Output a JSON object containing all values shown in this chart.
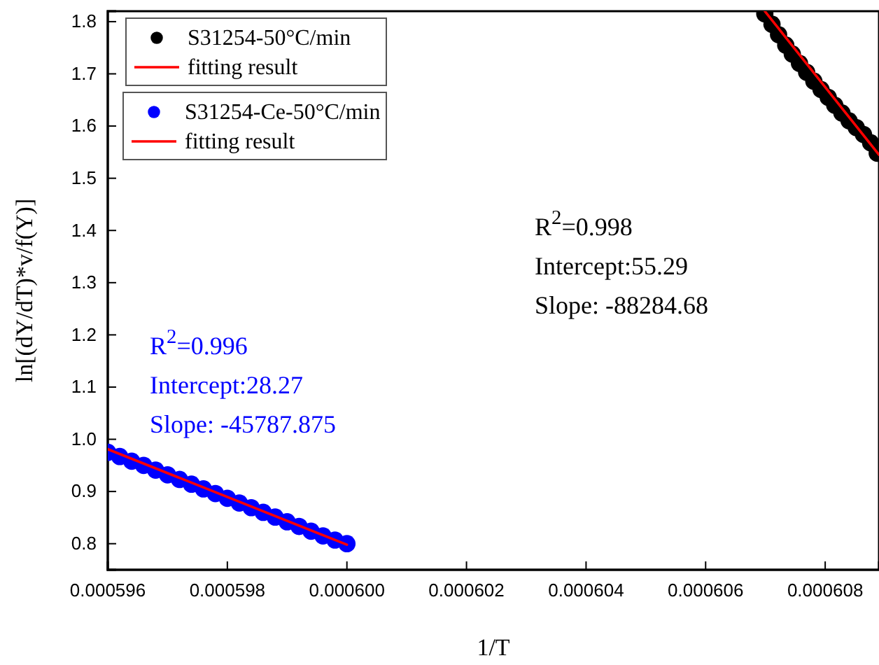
{
  "chart_data": {
    "type": "scatter",
    "xlabel": "1/T",
    "ylabel": "ln[(dY/dT)*v/f(Y)]",
    "xlim": [
      0.000596,
      0.0006089
    ],
    "ylim": [
      0.75,
      1.82
    ],
    "xticks": [
      0.000596,
      0.000598,
      {
        "value": 0.0006,
        "label": "0.000600"
      },
      0.000602,
      0.000604,
      0.000606,
      0.000608
    ],
    "yticks": [
      0.8,
      0.9,
      {
        "value": 1,
        "label": "1.0"
      },
      1.1,
      1.2,
      1.3,
      1.4,
      1.5,
      1.6,
      1.7,
      1.8
    ],
    "legend": "top left",
    "series": [
      {
        "name": "S31254-50°C/min",
        "marker": "circle",
        "color": "#000000",
        "x": [
          0.00060699,
          0.00060711,
          0.00060722,
          0.00060734,
          0.00060745,
          0.00060757,
          0.00060769,
          0.00060781,
          0.00060793,
          0.00060805,
          0.00060816,
          0.00060828,
          0.0006084,
          0.00060852,
          0.00060864,
          0.00060876,
          0.00060887
        ],
        "values": [
          1.815,
          1.795,
          1.775,
          1.755,
          1.738,
          1.72,
          1.703,
          1.686,
          1.67,
          1.655,
          1.64,
          1.625,
          1.61,
          1.597,
          1.584,
          1.568,
          1.548
        ]
      },
      {
        "name": "fitting result",
        "type": "line",
        "color": "#ff0000",
        "x": [
          0.00060699,
          0.0006089
        ],
        "values": [
          1.82,
          1.545
        ]
      },
      {
        "name": "S31254-Ce-50°C/min",
        "marker": "circle",
        "color": "#0000ff",
        "x": [
          0.000596,
          0.0005962,
          0.0005964,
          0.0005966,
          0.0005968,
          0.000597,
          0.0005972,
          0.0005974,
          0.0005976,
          0.0005978,
          0.000598,
          0.0005982,
          0.0005984,
          0.0005986,
          0.0005988,
          0.000599,
          0.0005992,
          0.0005994,
          0.0005996,
          0.0005998,
          0.0006
        ],
        "values": [
          0.975,
          0.967,
          0.958,
          0.95,
          0.941,
          0.932,
          0.923,
          0.914,
          0.905,
          0.896,
          0.887,
          0.878,
          0.869,
          0.86,
          0.851,
          0.842,
          0.833,
          0.824,
          0.815,
          0.807,
          0.8
        ]
      },
      {
        "name": "fitting result",
        "type": "line",
        "color": "#ff0000",
        "x": [
          0.000596,
          0.0006
        ],
        "values": [
          0.981,
          0.798
        ]
      }
    ],
    "annotations": [
      "R$^{2}$=0.998",
      "Intercept:55.29",
      "Slope: -88284.68",
      "R$^{2}$=0.996",
      "Intercept:28.27",
      "Slope: -45787.875"
    ]
  }
}
